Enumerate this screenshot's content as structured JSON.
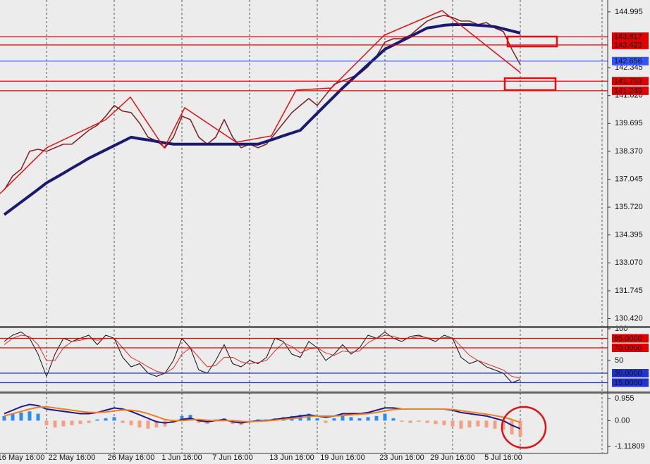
{
  "chart_data": [
    {
      "type": "line",
      "ylim": [
        130.07,
        145.56
      ],
      "yticks": [
        144.995,
        142.345,
        {
          "value": 141.02,
          "label": "141.020"
        },
        139.695,
        {
          "value": 138.37,
          "label": "138.370"
        },
        137.045,
        {
          "value": 135.72,
          "label": "135.720"
        },
        134.395,
        {
          "value": 133.07,
          "label": "133.070"
        },
        131.745,
        {
          "value": 130.42,
          "label": "130.420"
        }
      ],
      "levels": [
        {
          "value": 143.817,
          "color": "#e00000"
        },
        {
          "value": 143.423,
          "color": "#e00000"
        },
        {
          "value": 142.656,
          "color": "#3355ff"
        },
        {
          "value": 141.703,
          "color": "#e00000"
        },
        {
          "value": 141.249,
          "color": "#e00000"
        }
      ],
      "series": [
        {
          "color": "#7a2020",
          "width": 1.5,
          "values": [
            136.53,
            137.2,
            137.53,
            138.37,
            138.47,
            138.37,
            138.54,
            138.71,
            138.71,
            139.04,
            139.37,
            139.61,
            140.04,
            140.55,
            140.28,
            140.21,
            139.71,
            139.04,
            138.87,
            138.54,
            139.04,
            140.04,
            139.88,
            139.04,
            138.71,
            139.04,
            139.88,
            139.04,
            138.54,
            138.71,
            138.54,
            138.71,
            139.21,
            139.71,
            140.21,
            140.55,
            140.88,
            140.55,
            141.05,
            141.55,
            141.72,
            141.88,
            142.05,
            142.39,
            142.89,
            143.56,
            143.72,
            143.72,
            143.89,
            144.23,
            144.56,
            144.73,
            144.83,
            144.73,
            144.56,
            144.56,
            144.39,
            144.49,
            144.23,
            144.06,
            143.22,
            142.49
          ]
        },
        {
          "color": "#1a1a6e",
          "width": 4,
          "values": [
            135.36,
            135.66,
            135.96,
            136.26,
            136.56,
            136.87,
            137.1,
            137.33,
            137.57,
            137.8,
            138.04,
            138.24,
            138.44,
            138.64,
            138.84,
            139.04,
            138.97,
            138.91,
            138.84,
            138.77,
            138.71,
            138.71,
            138.71,
            138.71,
            138.71,
            138.71,
            138.71,
            138.71,
            138.71,
            138.71,
            138.71,
            138.84,
            138.97,
            139.11,
            139.24,
            139.37,
            139.78,
            140.18,
            140.58,
            140.98,
            141.38,
            141.75,
            142.12,
            142.49,
            142.85,
            143.22,
            143.42,
            143.62,
            143.82,
            144.03,
            144.23,
            144.29,
            144.36,
            144.39,
            144.39,
            144.39,
            144.36,
            144.33,
            144.29,
            144.19,
            144.09,
            143.99
          ]
        }
      ]
    },
    {
      "type": "line",
      "ylim": [
        0,
        100
      ],
      "yticks": [
        100,
        50
      ],
      "levels": [
        {
          "value": 85,
          "label": "85.0000",
          "color": "#e00000"
        },
        {
          "value": 70,
          "label": "70.0000",
          "color": "#e00000"
        },
        {
          "value": 30,
          "label": "30.0000",
          "color": "#2233cc"
        },
        {
          "value": 15,
          "label": "15.0000",
          "color": "#2233cc"
        }
      ],
      "series": [
        {
          "color": "#111111",
          "width": 1,
          "values": [
            80,
            90,
            95,
            85,
            60,
            25,
            60,
            85,
            80,
            85,
            90,
            75,
            90,
            85,
            55,
            40,
            45,
            30,
            25,
            30,
            50,
            85,
            70,
            35,
            30,
            50,
            75,
            45,
            40,
            50,
            45,
            55,
            85,
            80,
            60,
            55,
            80,
            70,
            50,
            60,
            75,
            60,
            70,
            90,
            85,
            95,
            85,
            80,
            88,
            90,
            85,
            80,
            90,
            85,
            55,
            45,
            50,
            40,
            35,
            30,
            15,
            20
          ]
        },
        {
          "color": "#e03030",
          "width": 1,
          "values": [
            75,
            85,
            90,
            88,
            75,
            50,
            50,
            70,
            80,
            82,
            85,
            82,
            85,
            85,
            70,
            55,
            48,
            40,
            33,
            30,
            38,
            60,
            70,
            55,
            40,
            42,
            55,
            55,
            48,
            45,
            47,
            50,
            65,
            78,
            72,
            62,
            68,
            70,
            62,
            58,
            65,
            63,
            65,
            78,
            85,
            90,
            88,
            84,
            85,
            88,
            86,
            84,
            86,
            86,
            72,
            58,
            50,
            45,
            40,
            35,
            25,
            22
          ]
        }
      ]
    },
    {
      "type": "bar",
      "ylim": [
        -1.39,
        1.14
      ],
      "yticks": [
        0.955,
        {
          "value": 0,
          "label": "0.00"
        },
        -1.11809
      ],
      "color": "#2a8cf0",
      "negative_color": "#f4a080",
      "values": [
        0.2,
        0.3,
        0.35,
        0.4,
        0.3,
        -0.2,
        -0.3,
        -0.25,
        -0.2,
        -0.15,
        -0.1,
        0.05,
        0.1,
        0.15,
        -0.1,
        -0.2,
        -0.3,
        -0.35,
        -0.3,
        -0.25,
        -0.1,
        0.2,
        0.25,
        -0.1,
        -0.15,
        0.05,
        0.1,
        -0.15,
        -0.2,
        -0.05,
        0.05,
        0.05,
        0.1,
        0.15,
        0.2,
        0.25,
        0.3,
        0.1,
        -0.1,
        0.1,
        0.25,
        0.15,
        0.1,
        0.15,
        0.2,
        0.3,
        0.1,
        -0.05,
        -0.1,
        -0.05,
        -0.1,
        -0.15,
        -0.2,
        -0.25,
        -0.35,
        -0.3,
        -0.25,
        -0.3,
        -0.35,
        -0.4,
        -0.6,
        -0.7
      ],
      "series": [
        {
          "color": "#1a1a8e",
          "width": 2,
          "values": [
            0.3,
            0.45,
            0.6,
            0.7,
            0.65,
            0.5,
            0.45,
            0.4,
            0.35,
            0.3,
            0.3,
            0.35,
            0.45,
            0.55,
            0.5,
            0.4,
            0.25,
            0.1,
            -0.05,
            -0.1,
            -0.05,
            0.05,
            0.1,
            0,
            -0.05,
            0,
            0.05,
            -0.05,
            -0.1,
            -0.05,
            0,
            0,
            0.05,
            0.1,
            0.15,
            0.2,
            0.25,
            0.2,
            0.15,
            0.2,
            0.3,
            0.3,
            0.3,
            0.35,
            0.45,
            0.55,
            0.55,
            0.5,
            0.5,
            0.5,
            0.5,
            0.5,
            0.5,
            0.45,
            0.35,
            0.3,
            0.25,
            0.2,
            0.1,
            0,
            -0.2,
            -0.35
          ]
        },
        {
          "color": "#f08020",
          "width": 2,
          "values": [
            0.2,
            0.3,
            0.4,
            0.5,
            0.58,
            0.6,
            0.55,
            0.5,
            0.45,
            0.4,
            0.36,
            0.35,
            0.37,
            0.42,
            0.46,
            0.45,
            0.4,
            0.3,
            0.18,
            0.05,
            0,
            0,
            0.03,
            0.05,
            0.02,
            0,
            0,
            0,
            -0.03,
            -0.05,
            -0.03,
            -0.01,
            0.02,
            0.05,
            0.09,
            0.13,
            0.18,
            0.2,
            0.2,
            0.2,
            0.22,
            0.25,
            0.27,
            0.3,
            0.35,
            0.42,
            0.48,
            0.5,
            0.5,
            0.5,
            0.5,
            0.5,
            0.5,
            0.48,
            0.43,
            0.38,
            0.33,
            0.28,
            0.22,
            0.15,
            0.05,
            -0.08
          ]
        }
      ],
      "categories": [
        null,
        null,
        "16 May 16:00",
        null,
        null,
        null,
        null,
        null,
        "22 May 16:00",
        null,
        null,
        null,
        null,
        null,
        null,
        "26 May 16:00",
        null,
        null,
        null,
        null,
        null,
        "1 Jun 16:00",
        null,
        null,
        null,
        null,
        null,
        "7 Jun 16:00",
        null,
        null,
        null,
        null,
        null,
        null,
        "13 Jun 16:00",
        null,
        null,
        null,
        null,
        null,
        "19 Jun 16:00",
        null,
        null,
        null,
        null,
        null,
        null,
        "23 Jun 16:00",
        null,
        null,
        null,
        null,
        null,
        "29 Jun 16:00",
        null,
        null,
        null,
        null,
        null,
        "5 Jul 16:00",
        null,
        null
      ]
    }
  ]
}
